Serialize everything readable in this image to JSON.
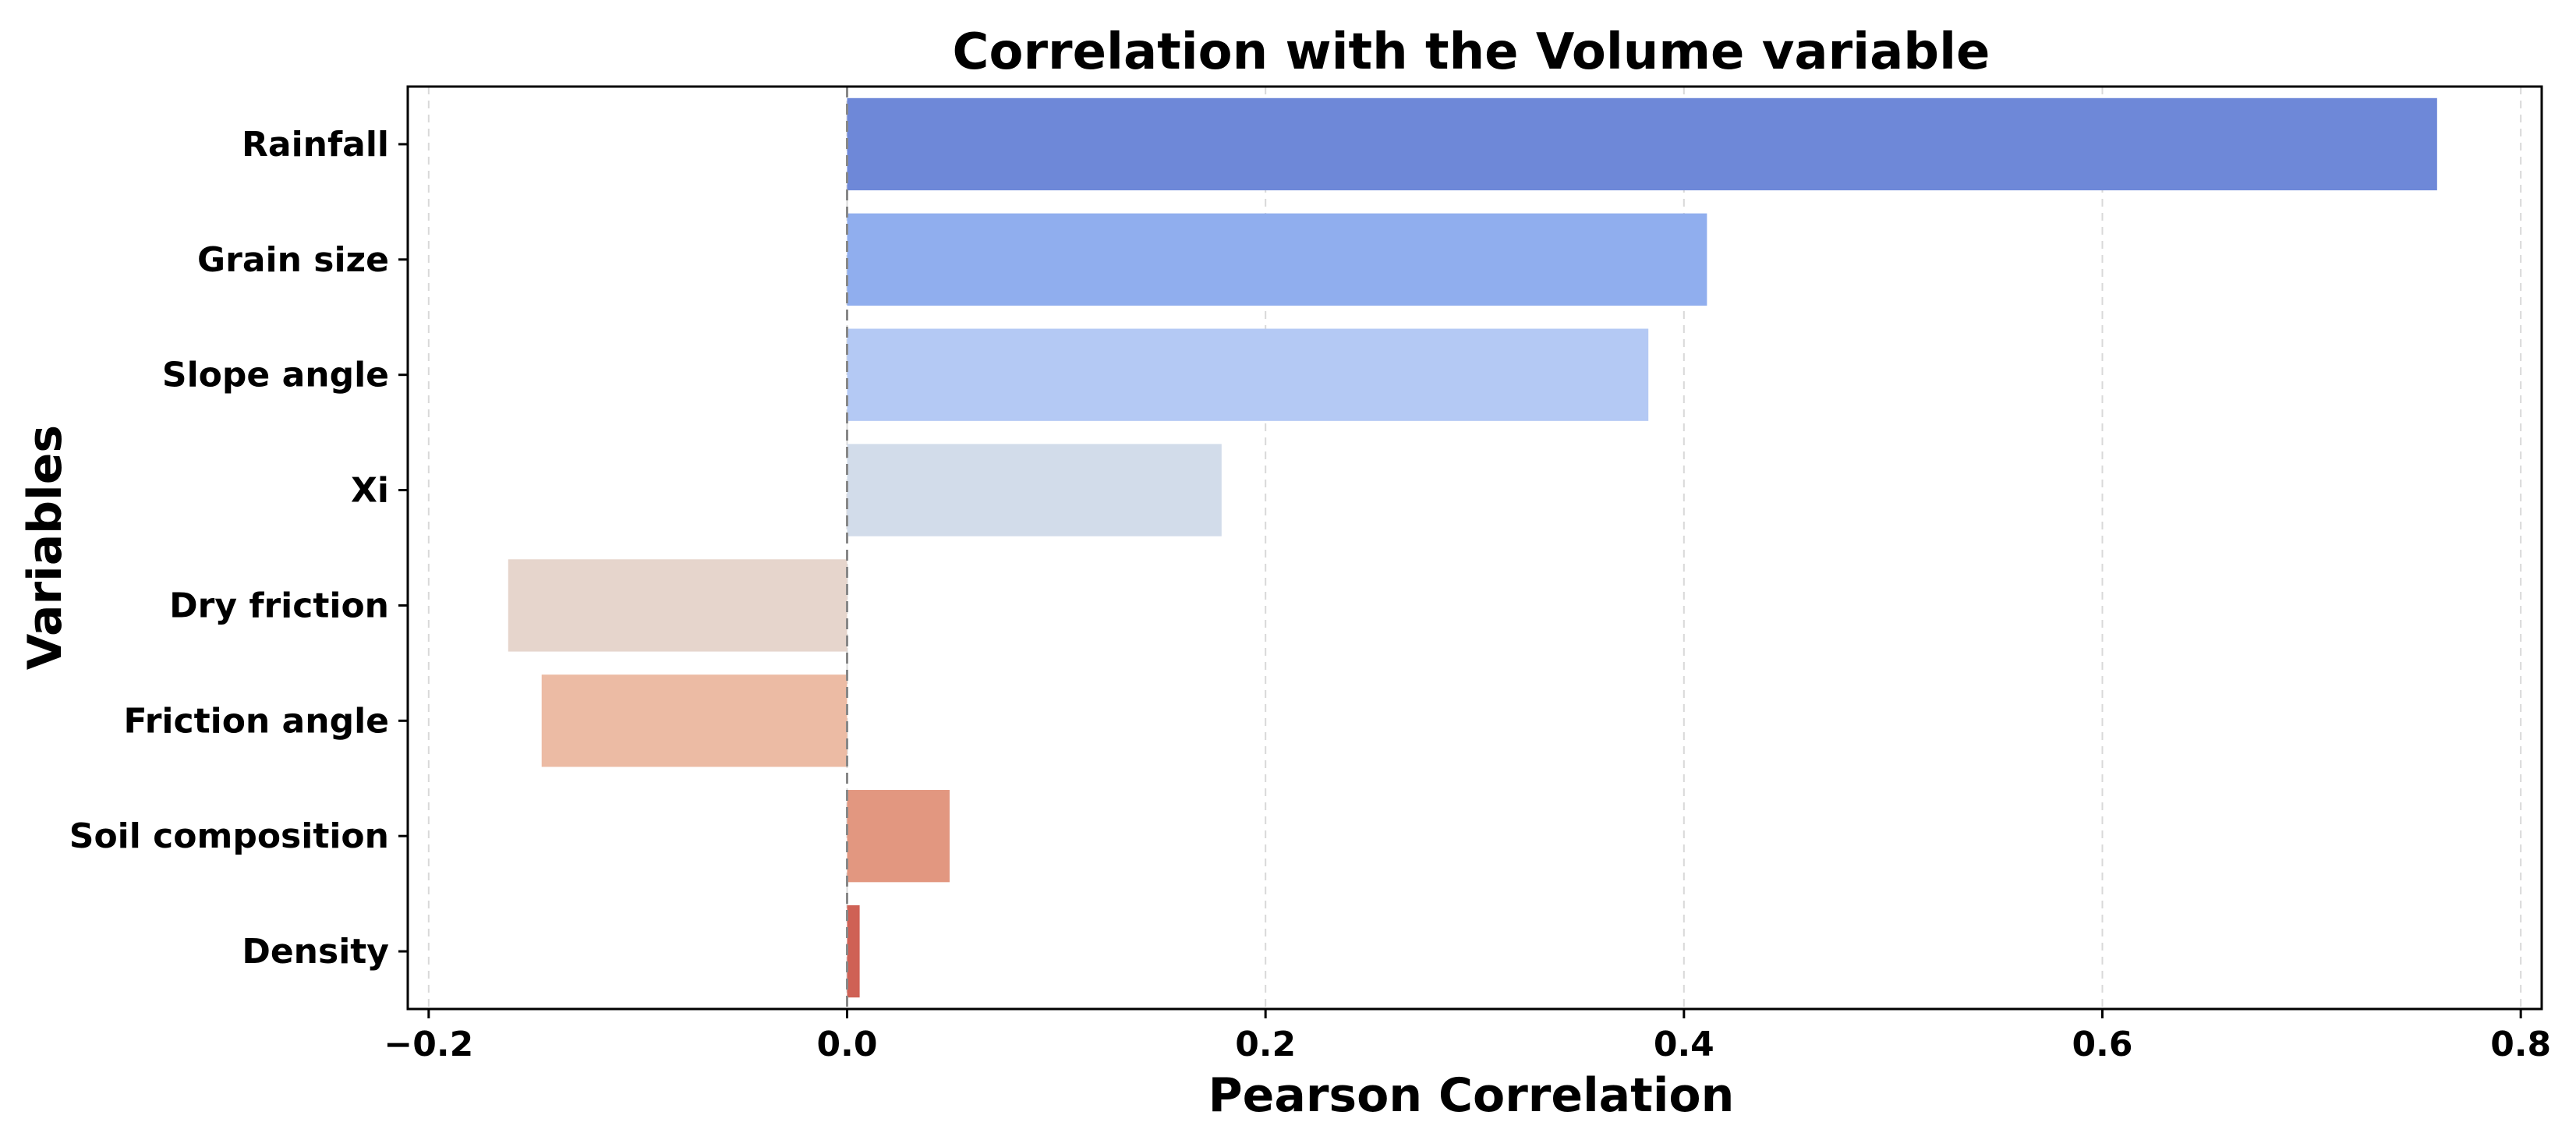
{
  "chart_data": {
    "type": "bar",
    "orientation": "horizontal",
    "title": "Correlation with the Volume variable",
    "xlabel": "Pearson Correlation",
    "ylabel": "Variables",
    "xlim": [
      -0.21,
      0.81
    ],
    "xticks": [
      -0.2,
      0.0,
      0.2,
      0.4,
      0.6,
      0.8
    ],
    "xtick_labels": [
      "−0.2",
      "0.0",
      "0.2",
      "0.4",
      "0.6",
      "0.8"
    ],
    "grid": "x-dashed",
    "zero_line": "dashed",
    "categories": [
      "Rainfall",
      "Grain size",
      "Slope angle",
      "Xi",
      "Dry friction",
      "Friction angle",
      "Soil composition",
      "Density"
    ],
    "values": [
      0.76,
      0.411,
      0.383,
      0.179,
      -0.162,
      -0.146,
      0.049,
      0.006
    ],
    "colors": [
      "#6e88d8",
      "#90aeee",
      "#b4c9f4",
      "#d2dcea",
      "#e6d5cc",
      "#ecbba4",
      "#e29780",
      "#cf6155"
    ]
  }
}
